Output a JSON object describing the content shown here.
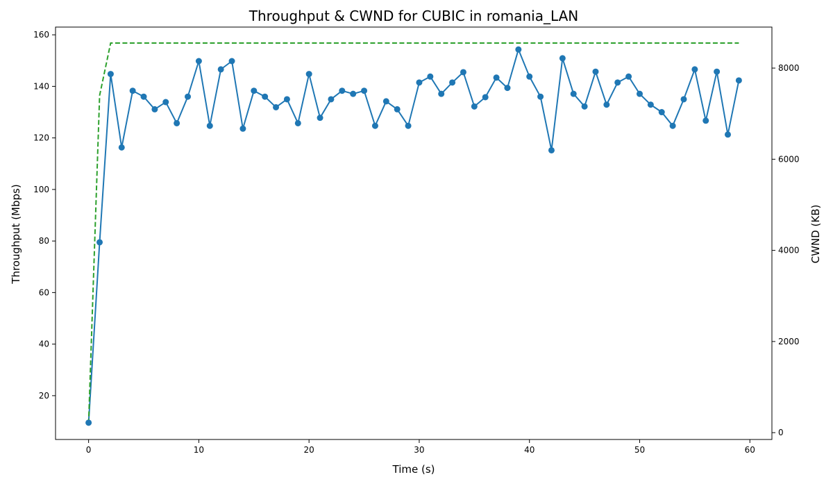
{
  "chart_data": {
    "type": "line",
    "title": "Throughput & CWND for CUBIC in romania_LAN",
    "xlabel": "Time (s)",
    "ylabel": "Throughput (Mbps)",
    "y2label": "CWND (KB)",
    "xlim": [
      -3,
      62
    ],
    "ylim": [
      3,
      163
    ],
    "y2lim": [
      -150,
      8900
    ],
    "xticks": [
      0,
      10,
      20,
      30,
      40,
      50,
      60
    ],
    "yticks": [
      20,
      40,
      60,
      80,
      100,
      120,
      140,
      160
    ],
    "y2ticks": [
      0,
      2000,
      4000,
      6000,
      8000
    ],
    "grid": false,
    "colors": {
      "throughput": "#1f77b4",
      "cwnd": "#2ca02c"
    },
    "x": [
      0,
      1,
      2,
      3,
      4,
      5,
      6,
      7,
      8,
      9,
      10,
      11,
      12,
      13,
      14,
      15,
      16,
      17,
      18,
      19,
      20,
      21,
      22,
      23,
      24,
      25,
      26,
      27,
      28,
      29,
      30,
      31,
      32,
      33,
      34,
      35,
      36,
      37,
      38,
      39,
      40,
      41,
      42,
      43,
      44,
      45,
      46,
      47,
      48,
      49,
      50,
      51,
      52,
      53,
      54,
      55,
      56,
      57,
      58,
      59
    ],
    "series": [
      {
        "axis": "left",
        "style": "solid-markers",
        "values": [
          9.5,
          79.5,
          144.8,
          116.3,
          138.3,
          136.0,
          131.1,
          133.9,
          125.7,
          136.0,
          149.8,
          124.7,
          146.6,
          149.8,
          123.6,
          138.3,
          136.0,
          131.9,
          135.0,
          125.7,
          144.8,
          127.8,
          135.0,
          138.3,
          137.1,
          138.3,
          124.7,
          134.2,
          131.1,
          124.7,
          141.5,
          143.8,
          137.1,
          141.5,
          145.5,
          132.2,
          135.8,
          143.4,
          139.4,
          154.3,
          143.8,
          136.0,
          115.2,
          150.9,
          137.1,
          132.2,
          145.7,
          132.9,
          141.5,
          143.8,
          137.1,
          132.9,
          130.0,
          124.7,
          135.0,
          146.6,
          126.7,
          145.7,
          121.3,
          142.3
        ]
      },
      {
        "axis": "right",
        "style": "dashed",
        "x": [
          0,
          1,
          2,
          59
        ],
        "values": [
          200,
          7400,
          8550,
          8550
        ]
      }
    ]
  }
}
